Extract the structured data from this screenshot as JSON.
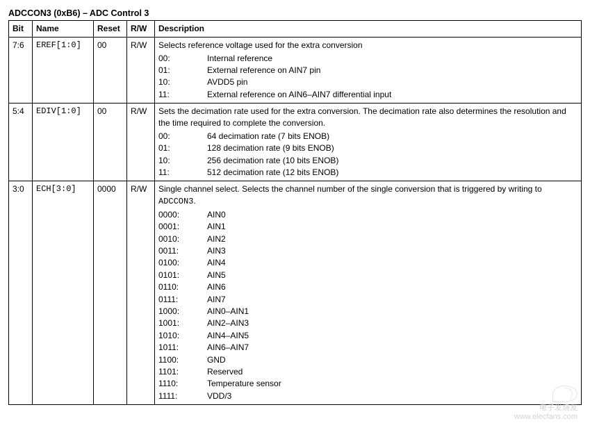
{
  "title": "ADCCON3 (0xB6) – ADC Control 3",
  "columns": [
    "Bit",
    "Name",
    "Reset",
    "R/W",
    "Description"
  ],
  "rows": [
    {
      "bit": "7:6",
      "name": "EREF[1:0]",
      "reset": "00",
      "rw": "R/W",
      "intro": "Selects reference voltage used for the extra conversion",
      "opts": [
        {
          "code": "00:",
          "val": "Internal reference"
        },
        {
          "code": "01:",
          "val": "External reference on AIN7 pin"
        },
        {
          "code": "10:",
          "val": "AVDD5 pin"
        },
        {
          "code": "11:",
          "val": "External reference on AIN6–AIN7 differential input"
        }
      ]
    },
    {
      "bit": "5:4",
      "name": "EDIV[1:0]",
      "reset": "00",
      "rw": "R/W",
      "intro": "Sets the decimation rate used for the extra conversion. The decimation rate also determines the resolution and the time required to complete the conversion.",
      "opts": [
        {
          "code": "00:",
          "val": "64 decimation rate (7 bits ENOB)"
        },
        {
          "code": "01:",
          "val": "128 decimation rate (9 bits ENOB)"
        },
        {
          "code": "10:",
          "val": "256 decimation rate (10 bits ENOB)"
        },
        {
          "code": "11:",
          "val": "512 decimation rate (12 bits ENOB)"
        }
      ]
    },
    {
      "bit": "3:0",
      "name": "ECH[3:0]",
      "reset": "0000",
      "rw": "R/W",
      "intro_pre": "Single channel select. Selects the channel number of the single conversion that is triggered by writing to ",
      "intro_mono": "ADCCON3",
      "intro_post": ".",
      "opts": [
        {
          "code": "0000:",
          "val": "AIN0"
        },
        {
          "code": "0001:",
          "val": "AIN1"
        },
        {
          "code": "0010:",
          "val": "AIN2"
        },
        {
          "code": "0011:",
          "val": "AIN3"
        },
        {
          "code": "0100:",
          "val": "AIN4"
        },
        {
          "code": "0101:",
          "val": "AIN5"
        },
        {
          "code": "0110:",
          "val": "AIN6"
        },
        {
          "code": "0111:",
          "val": "AIN7"
        },
        {
          "code": "1000:",
          "val": "AIN0–AIN1"
        },
        {
          "code": "1001:",
          "val": "AIN2–AIN3"
        },
        {
          "code": "1010:",
          "val": "AIN4–AIN5"
        },
        {
          "code": "1011:",
          "val": "AIN6–AIN7"
        },
        {
          "code": "1100:",
          "val": "GND"
        },
        {
          "code": "1101:",
          "val": "Reserved"
        },
        {
          "code": "1110:",
          "val": "Temperature sensor"
        },
        {
          "code": "1111:",
          "val": "VDD/3"
        }
      ]
    }
  ],
  "watermark": {
    "line1": "电子发烧友",
    "line2": "www.elecfans.com"
  }
}
